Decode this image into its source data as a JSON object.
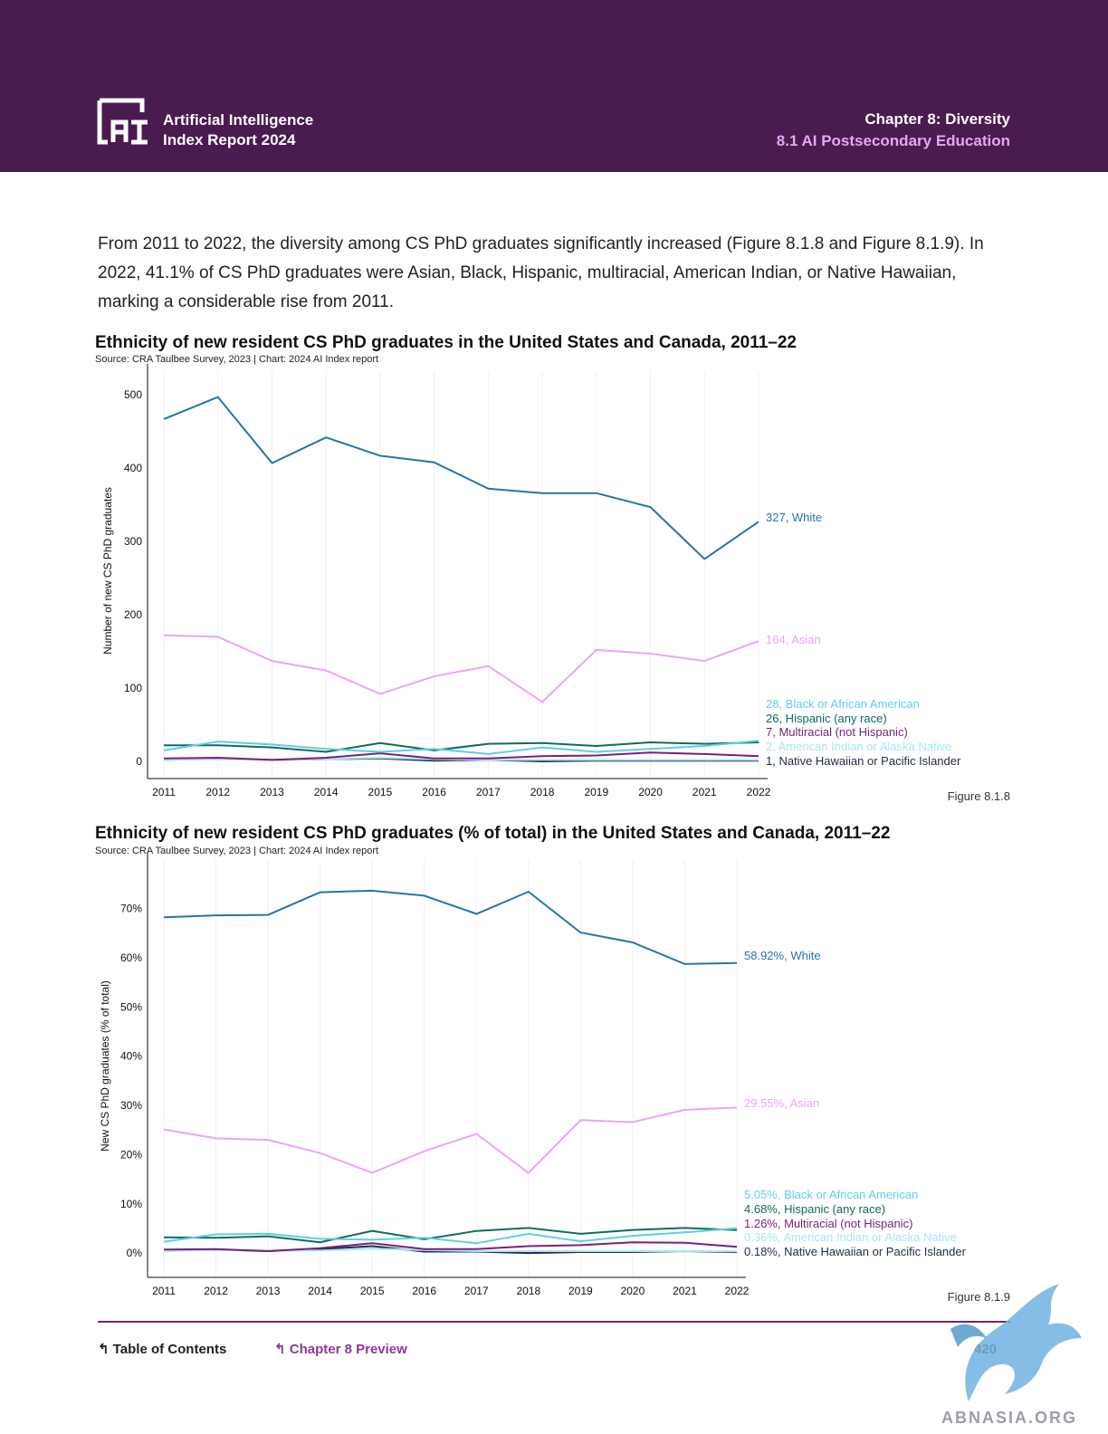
{
  "header": {
    "brand_line1": "Artificial Intelligence",
    "brand_line2": "Index Report 2024",
    "chapter": "Chapter 8: Diversity",
    "section": "8.1 AI Postsecondary Education"
  },
  "intro_text": "From 2011 to 2022, the diversity among CS PhD graduates significantly increased (Figure 8.1.8 and Figure 8.1.9). In 2022, 41.1% of CS PhD graduates were Asian, Black, Hispanic, multiracial, American Indian, or Native Hawaiian, marking a considerable rise from 2011.",
  "chart_data": [
    {
      "type": "line",
      "title": "Ethnicity of new resident CS PhD graduates in the United States and Canada, 2011–22",
      "source": "Source: CRA Taulbee Survey, 2023 | Chart: 2024 AI Index report",
      "ylabel": "Number of new CS PhD graduates",
      "xlabel": "",
      "figure": "Figure 8.1.8",
      "x": [
        "2011",
        "2012",
        "2013",
        "2014",
        "2015",
        "2016",
        "2017",
        "2018",
        "2019",
        "2020",
        "2021",
        "2022"
      ],
      "ylim": [
        0,
        520
      ],
      "yticks": [
        0,
        100,
        200,
        300,
        400,
        500
      ],
      "ytick_labels": [
        "0",
        "100",
        "200",
        "300",
        "400",
        "500"
      ],
      "grid": true,
      "series": [
        {
          "name": "White",
          "color": "#2176ae",
          "label": "327, White",
          "values": [
            467,
            497,
            407,
            442,
            417,
            408,
            372,
            366,
            366,
            347,
            276,
            327
          ]
        },
        {
          "name": "Asian",
          "color": "#e9a6f5",
          "label": "164, Asian",
          "values": [
            172,
            170,
            137,
            124,
            92,
            116,
            130,
            81,
            152,
            147,
            137,
            164
          ]
        },
        {
          "name": "Black or African American",
          "color": "#5fcde8",
          "label": "28, Black or African American",
          "values": [
            15,
            27,
            23,
            17,
            13,
            17,
            10,
            19,
            13,
            17,
            21,
            28
          ]
        },
        {
          "name": "Hispanic (any race)",
          "color": "#0f6b5e",
          "label": "26, Hispanic (any race)",
          "values": [
            22,
            22,
            19,
            13,
            25,
            15,
            24,
            25,
            21,
            26,
            24,
            26
          ]
        },
        {
          "name": "Multiracial (not Hispanic)",
          "color": "#7a1f7e",
          "label": "7, Multiracial (not Hispanic)",
          "values": [
            4,
            5,
            2,
            5,
            11,
            4,
            4,
            7,
            8,
            12,
            10,
            7
          ]
        },
        {
          "name": "American Indian or Alaska Native",
          "color": "#a8e6f5",
          "label": "2, American Indian or Alaska Native",
          "values": [
            2,
            3,
            2,
            3,
            5,
            3,
            2,
            2,
            2,
            2,
            2,
            2
          ]
        },
        {
          "name": "Native Hawaiian or Pacific Islander",
          "color": "#1b2c4a",
          "label": "1, Native Hawaiian or Pacific Islander",
          "values": [
            2,
            4,
            2,
            3,
            4,
            1,
            2,
            0,
            1,
            1,
            1,
            1
          ]
        }
      ]
    },
    {
      "type": "line",
      "title": "Ethnicity of new resident CS PhD graduates (% of total) in the United States and Canada, 2011–22",
      "source": "Source: CRA Taulbee Survey, 2023 | Chart: 2024 AI Index report",
      "ylabel": "New CS PhD graduates (% of total)",
      "xlabel": "",
      "figure": "Figure 8.1.9",
      "x": [
        "2011",
        "2012",
        "2013",
        "2014",
        "2015",
        "2016",
        "2017",
        "2018",
        "2019",
        "2020",
        "2021",
        "2022"
      ],
      "ylim": [
        -2,
        78
      ],
      "yticks": [
        0,
        10,
        20,
        30,
        40,
        50,
        60,
        70
      ],
      "ytick_labels": [
        "0%",
        "10%",
        "20%",
        "30%",
        "40%",
        "50%",
        "60%",
        "70%"
      ],
      "grid": true,
      "series": [
        {
          "name": "White",
          "color": "#2176ae",
          "label": "58.92%, White",
          "values": [
            68.2,
            68.6,
            68.7,
            73.3,
            73.6,
            72.6,
            68.9,
            73.4,
            65.1,
            63.1,
            58.7,
            58.92
          ]
        },
        {
          "name": "Asian",
          "color": "#e9a6f5",
          "label": "29.55%, Asian",
          "values": [
            25.1,
            23.3,
            23.0,
            20.3,
            16.3,
            20.7,
            24.2,
            16.3,
            27.0,
            26.6,
            29.1,
            29.55
          ]
        },
        {
          "name": "Black or African American",
          "color": "#5fcde8",
          "label": "5.05%, Black or African American",
          "values": [
            2.3,
            3.8,
            3.9,
            2.9,
            2.7,
            3.1,
            2.0,
            3.9,
            2.4,
            3.5,
            4.2,
            5.05
          ]
        },
        {
          "name": "Hispanic (any race)",
          "color": "#0f6b5e",
          "label": "4.68%, Hispanic (any race)",
          "values": [
            3.2,
            3.1,
            3.4,
            2.2,
            4.5,
            2.8,
            4.5,
            5.1,
            3.9,
            4.7,
            5.1,
            4.68
          ]
        },
        {
          "name": "Multiracial (not Hispanic)",
          "color": "#7a1f7e",
          "label": "1.26%, Multiracial (not Hispanic)",
          "values": [
            0.7,
            0.8,
            0.4,
            1.0,
            2.0,
            0.8,
            0.8,
            1.4,
            1.6,
            2.2,
            2.1,
            1.26
          ]
        },
        {
          "name": "American Indian or Alaska Native",
          "color": "#a8e6f5",
          "label": "0.36%, American Indian or Alaska Native",
          "values": [
            0.4,
            0.6,
            0.5,
            0.5,
            0.9,
            0.6,
            0.4,
            0.4,
            0.4,
            0.4,
            0.4,
            0.36
          ]
        },
        {
          "name": "Native Hawaiian or Pacific Islander",
          "color": "#1b2c4a",
          "label": "0.18%, Native Hawaiian or Pacific Islander",
          "values": [
            0.6,
            0.7,
            0.4,
            0.8,
            1.4,
            0.3,
            0.3,
            0.0,
            0.2,
            0.2,
            0.4,
            0.18
          ]
        }
      ]
    }
  ],
  "footer": {
    "toc": "Table of Contents",
    "preview": "Chapter 8 Preview",
    "page": "420"
  },
  "watermark": "ABNASIA.ORG"
}
